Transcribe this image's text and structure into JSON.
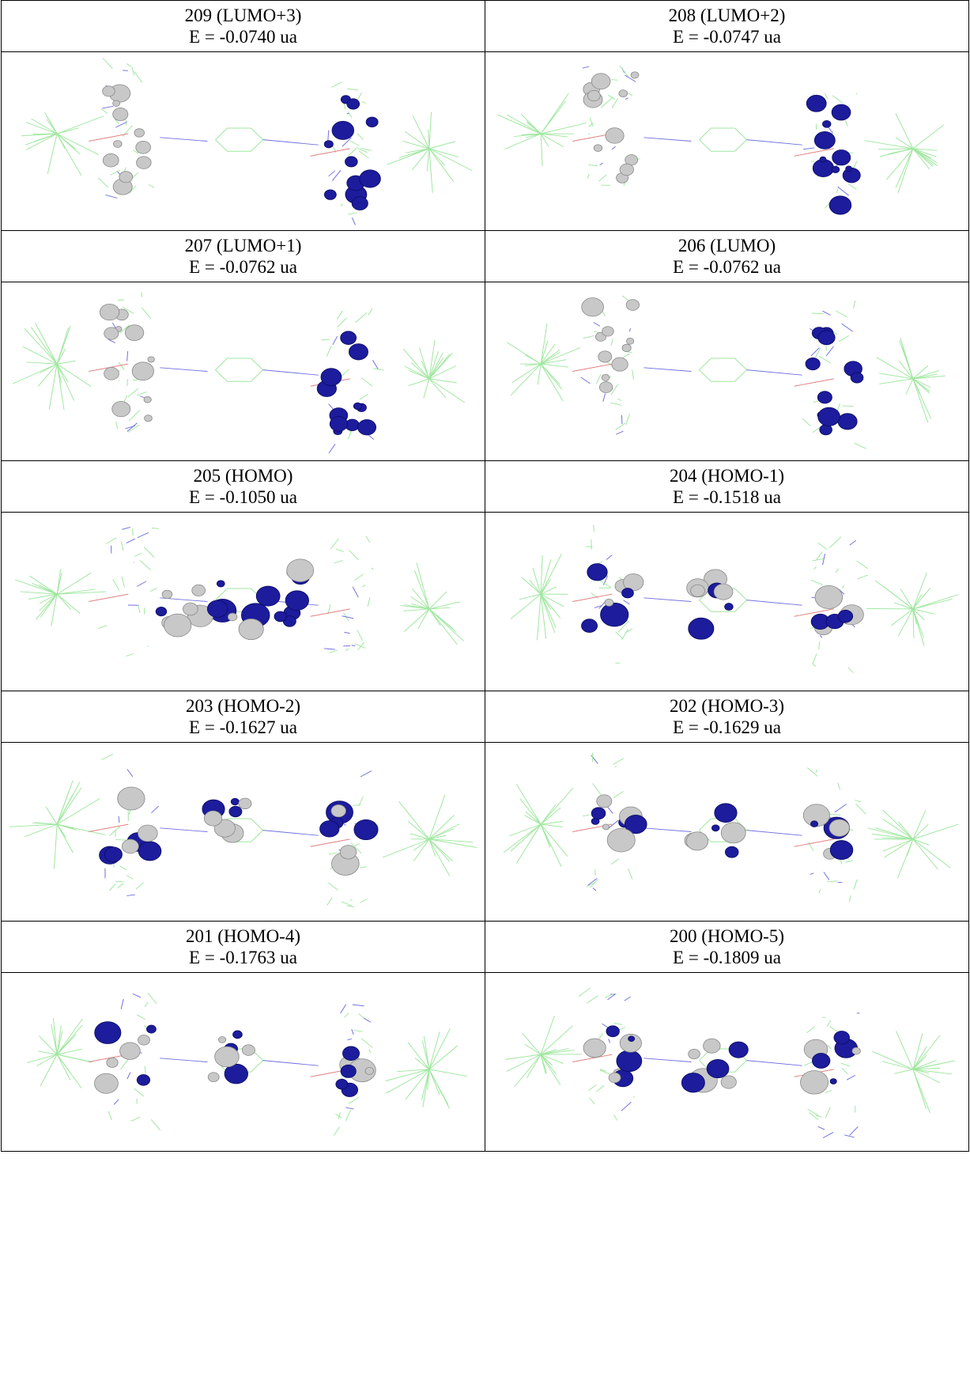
{
  "table": {
    "rows": [
      [
        {
          "label": "209 (LUMO+3)",
          "energy": "E = -0.0740 ua"
        },
        {
          "label": "208 (LUMO+2)",
          "energy": "E = -0.0747 ua"
        }
      ],
      [
        {
          "label": "207 (LUMO+1)",
          "energy": "E = -0.0762 ua"
        },
        {
          "label": "206 (LUMO)",
          "energy": "E = -0.0762 ua"
        }
      ],
      [
        {
          "label": "205 (HOMO)",
          "energy": "E = -0.1050 ua"
        },
        {
          "label": "204 (HOMO-1)",
          "energy": "E = -0.1518 ua"
        }
      ],
      [
        {
          "label": "203 (HOMO-2)",
          "energy": "E = -0.1627 ua"
        },
        {
          "label": "202 (HOMO-3)",
          "energy": "E = -0.1629 ua"
        }
      ],
      [
        {
          "label": "201 (HOMO-4)",
          "energy": "E = -0.1763 ua"
        },
        {
          "label": "200 (HOMO-5)",
          "energy": "E = -0.1809 ua"
        }
      ]
    ]
  }
}
